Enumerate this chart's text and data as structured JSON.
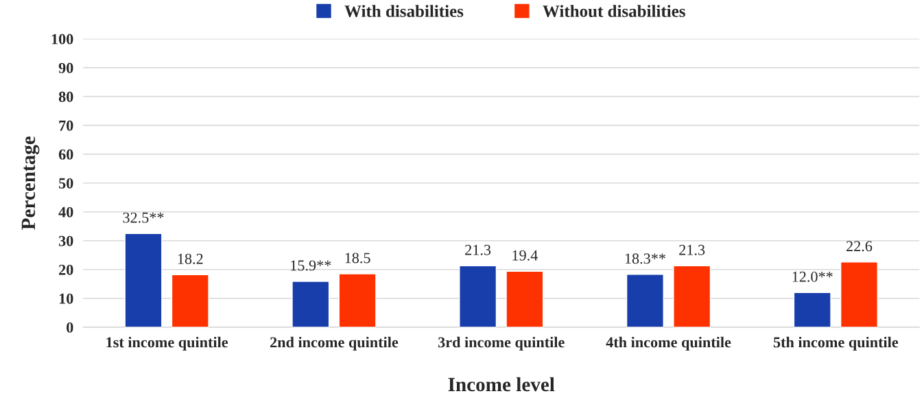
{
  "chart_data": {
    "type": "bar",
    "xlabel": "Income level",
    "ylabel": "Percentage",
    "categories": [
      "1st income quintile",
      "2nd income quintile",
      "3rd income quintile",
      "4th income quintile",
      "5th income quintile"
    ],
    "series": [
      {
        "name": "With disabilities",
        "color": "#183eac",
        "values": [
          32.5,
          15.9,
          21.3,
          18.3,
          12.0
        ],
        "value_labels": [
          "32.5**",
          "15.9**",
          "21.3",
          "18.3**",
          "12.0**"
        ]
      },
      {
        "name": "Without disabilities",
        "color": "#fe3200",
        "values": [
          18.2,
          18.5,
          19.4,
          21.3,
          22.6
        ],
        "value_labels": [
          "18.2",
          "18.5",
          "19.4",
          "21.3",
          "22.6"
        ]
      }
    ],
    "ylim": [
      0,
      100
    ],
    "yticks": [
      0,
      10,
      20,
      30,
      40,
      50,
      60,
      70,
      80,
      90,
      100
    ],
    "grid": "y",
    "legend": "top"
  }
}
